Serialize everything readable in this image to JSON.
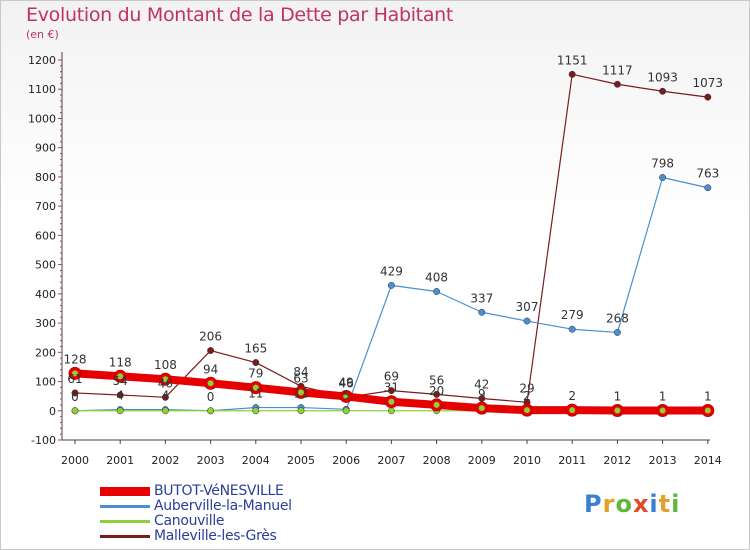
{
  "title": "Evolution du Montant de la Dette par Habitant",
  "subtitle": "(en €)",
  "logo": {
    "text": "Proxiti",
    "colors": [
      "#3a7fd0",
      "#e3a12a",
      "#5fb83a",
      "#e04a2a",
      "#3a7fd0",
      "#e3a12a",
      "#5fb83a"
    ]
  },
  "chart_data": {
    "type": "line",
    "x": [
      "2000",
      "2001",
      "2002",
      "2003",
      "2004",
      "2005",
      "2006",
      "2007",
      "2008",
      "2009",
      "2010",
      "2011",
      "2012",
      "2013",
      "2014"
    ],
    "ylim": [
      -100,
      1200
    ],
    "yticks": [
      -100,
      0,
      100,
      200,
      300,
      400,
      500,
      600,
      700,
      800,
      900,
      1000,
      1100,
      1200
    ],
    "grid": false,
    "legend_position": "bottom-left",
    "series": [
      {
        "name": "Malleville-les-Grès",
        "color": "#7a1c1c",
        "width": 1.2,
        "values": [
          61,
          54,
          46,
          206,
          165,
          84,
          46,
          69,
          56,
          42,
          29,
          1151,
          1117,
          1093,
          1073
        ],
        "labels": [
          "61",
          "54",
          "46",
          "206",
          "165",
          "84",
          "46",
          "69",
          "56",
          "42",
          "29",
          "1151",
          "1117",
          "1093",
          "1073"
        ]
      },
      {
        "name": "Auberville-la-Manuel",
        "color": "#4a8fd0",
        "width": 1.2,
        "values": [
          0,
          4,
          4,
          0,
          11,
          11,
          5,
          429,
          408,
          337,
          307,
          279,
          268,
          798,
          763
        ],
        "labels": [
          "0",
          "4",
          "4",
          "0",
          "11",
          "11",
          "5",
          "429",
          "408",
          "337",
          "307",
          "279",
          "268",
          "798",
          "763"
        ]
      },
      {
        "name": "Canouville",
        "color": "#8fd03a",
        "width": 1.2,
        "values": [
          0,
          0,
          0,
          0,
          0,
          0,
          0,
          0,
          0,
          0,
          0,
          0,
          0,
          0,
          0
        ],
        "labels": []
      },
      {
        "name": "BUTOT-VéNESVILLE",
        "color": "#e60000",
        "width": 8,
        "values": [
          128,
          118,
          108,
          94,
          79,
          63,
          49,
          31,
          20,
          9,
          2,
          2,
          1,
          1,
          1
        ],
        "labels": [
          "128",
          "118",
          "108",
          "94",
          "79",
          "63",
          "49",
          "31",
          "20",
          "9",
          "2",
          "2",
          "1",
          "1",
          "1"
        ]
      }
    ],
    "legend_order": [
      "BUTOT-VéNESVILLE",
      "Auberville-la-Manuel",
      "Canouville",
      "Malleville-les-Grès"
    ]
  }
}
